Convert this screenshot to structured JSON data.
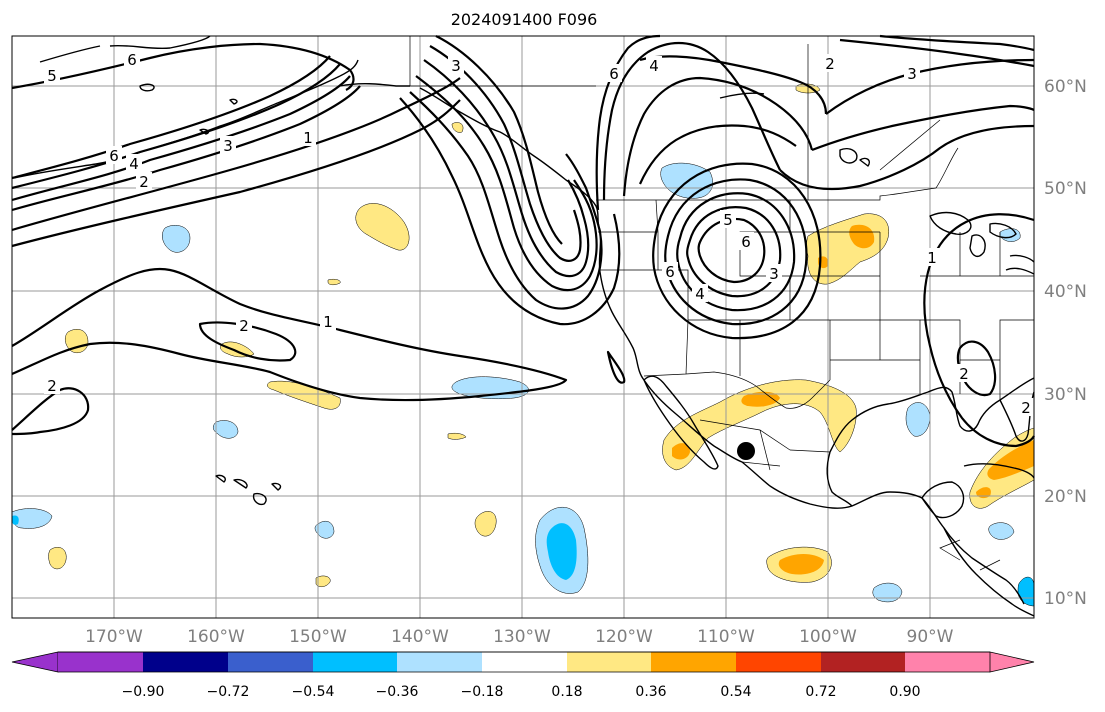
{
  "title": "2024091400 F096",
  "map": {
    "lon_labels": [
      "170°W",
      "160°W",
      "150°W",
      "140°W",
      "130°W",
      "120°W",
      "110°W",
      "100°W",
      "90°W"
    ],
    "lat_labels": [
      "60°N",
      "50°N",
      "40°N",
      "30°N",
      "20°N",
      "10°N"
    ],
    "contour_labels": [
      "5",
      "6",
      "3",
      "4",
      "6",
      "2",
      "1",
      "6",
      "3",
      "4",
      "2",
      "5",
      "6",
      "3",
      "4",
      "6",
      "3",
      "2",
      "1",
      "2",
      "2",
      "1",
      "2"
    ],
    "marker": "station-dot"
  },
  "colorbar": {
    "ticks": [
      "−0.90",
      "−0.72",
      "−0.54",
      "−0.36",
      "−0.18",
      "0.18",
      "0.36",
      "0.54",
      "0.72",
      "0.90"
    ],
    "colors": [
      "#9932CC",
      "#00008B",
      "#3A5FCD",
      "#00BFFF",
      "#AEE1FF",
      "#FFFFFF",
      "#FFE883",
      "#FFA500",
      "#FF4500",
      "#B22222",
      "#FF82AB"
    ]
  }
}
